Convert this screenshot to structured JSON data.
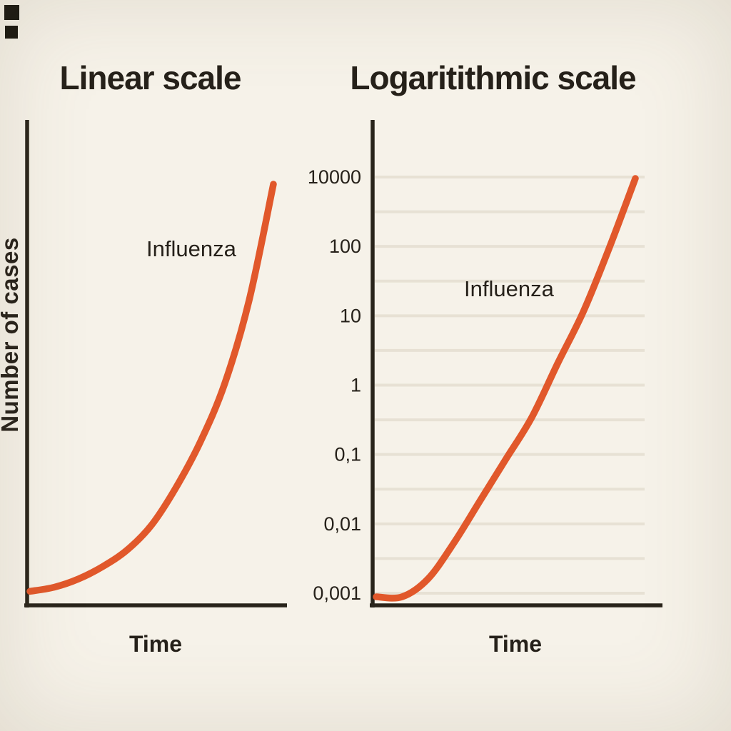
{
  "background_color": "#f6f2e9",
  "accent_color": "#e1582b",
  "axis_color": "#29241b",
  "grid_color": "#e7e1d4",
  "chart_data": [
    {
      "type": "line",
      "title": "Linear scale",
      "xlabel": "Time",
      "ylabel": "Number of cases",
      "yscale": "linear",
      "y_ticks": "none (unlabeled axis)",
      "x_ticks": "none (unlabeled axis)",
      "grid": false,
      "legend_position": "none",
      "annotation": "Influenza",
      "line_color": "#e1582b",
      "series": [
        {
          "name": "Influenza",
          "x": [
            0,
            1,
            2,
            3,
            4,
            5,
            6,
            7,
            8,
            9,
            10
          ],
          "values_relative_to_max": [
            0.02,
            0.03,
            0.05,
            0.08,
            0.12,
            0.18,
            0.27,
            0.38,
            0.52,
            0.72,
            1.0
          ]
        }
      ]
    },
    {
      "type": "line",
      "title": "Logaritithmic scale",
      "xlabel": "Time",
      "ylabel": "",
      "yscale": "log",
      "ytick_labels": [
        "10000",
        "100",
        "10",
        "1",
        "0,1",
        "0,01",
        "0,001"
      ],
      "ytick_values": [
        10000,
        100,
        10,
        1,
        0.1,
        0.01,
        0.001
      ],
      "ylim": [
        0.001,
        10000
      ],
      "grid": true,
      "legend_position": "none",
      "annotation": "Influenza",
      "line_color": "#e1582b",
      "series": [
        {
          "name": "Influenza",
          "x": [
            0,
            1,
            2,
            3,
            4,
            5,
            6,
            7,
            8,
            9,
            10
          ],
          "values": [
            0.001,
            0.001,
            0.002,
            0.008,
            0.04,
            0.2,
            1,
            8,
            60,
            700,
            10000
          ]
        }
      ]
    }
  ]
}
